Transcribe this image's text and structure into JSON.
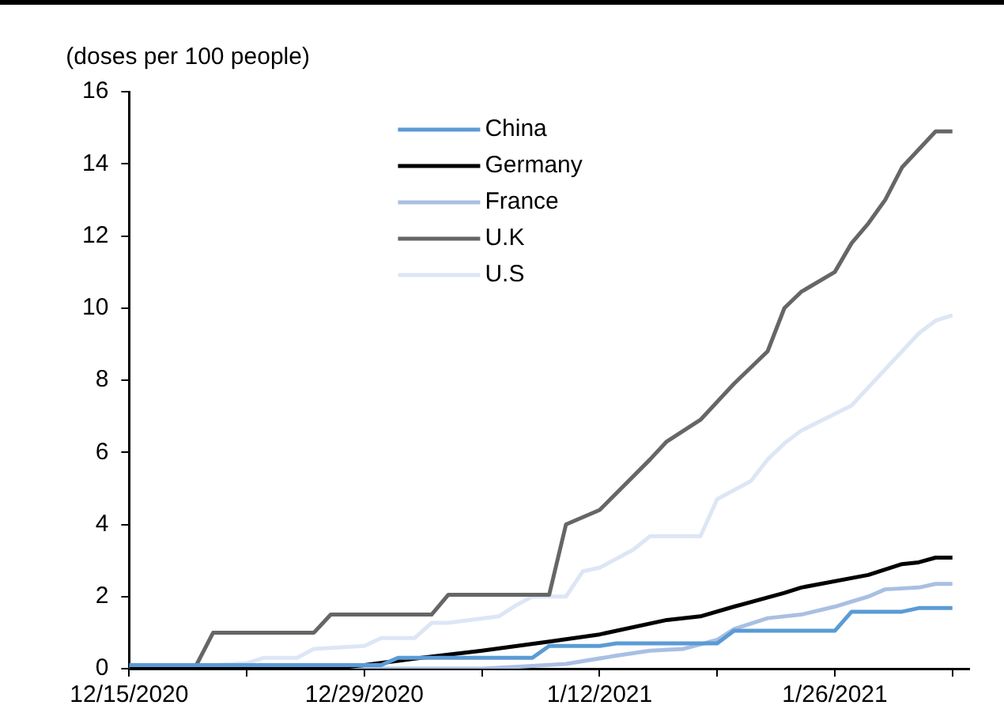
{
  "chart_data": {
    "type": "line",
    "ylabel": "(doses per 100 people)",
    "xlim": [
      "2020-12-15",
      "2021-02-03"
    ],
    "xticks": [
      {
        "value": "2020-12-15",
        "label": "12/15/2020"
      },
      {
        "value": "2020-12-22",
        "label": null
      },
      {
        "value": "2020-12-29",
        "label": "12/29/2020"
      },
      {
        "value": "2021-01-05",
        "label": null
      },
      {
        "value": "2021-01-12",
        "label": "1/12/2021"
      },
      {
        "value": "2021-01-19",
        "label": null
      },
      {
        "value": "2021-01-26",
        "label": "1/26/2021"
      },
      {
        "value": "2021-02-02",
        "label": null
      }
    ],
    "ylim": [
      0,
      16
    ],
    "yticks": [
      0,
      2,
      4,
      6,
      8,
      10,
      12,
      14,
      16
    ],
    "legend": "top",
    "line_style": "solid",
    "marker": "none",
    "series": [
      {
        "name": "China",
        "color": "#5b9bd5",
        "x": [
          "2020-12-15",
          "2020-12-30",
          "2020-12-31",
          "2021-01-08",
          "2021-01-09",
          "2021-01-12",
          "2021-01-13",
          "2021-01-19",
          "2021-01-20",
          "2021-01-26",
          "2021-01-27",
          "2021-01-30",
          "2021-01-31",
          "2021-02-02"
        ],
        "values": [
          0.1,
          0.1,
          0.3,
          0.3,
          0.63,
          0.63,
          0.7,
          0.7,
          1.05,
          1.05,
          1.58,
          1.58,
          1.68,
          1.68
        ]
      },
      {
        "name": "Germany",
        "color": "#000000",
        "x": [
          "2020-12-15",
          "2020-12-27",
          "2020-12-29",
          "2021-01-01",
          "2021-01-05",
          "2021-01-09",
          "2021-01-12",
          "2021-01-16",
          "2021-01-18",
          "2021-01-20",
          "2021-01-23",
          "2021-01-24",
          "2021-01-28",
          "2021-01-30",
          "2021-01-31",
          "2021-02-01",
          "2021-02-02"
        ],
        "values": [
          0,
          0,
          0.1,
          0.28,
          0.5,
          0.75,
          0.95,
          1.35,
          1.45,
          1.72,
          2.1,
          2.25,
          2.6,
          2.9,
          2.95,
          3.08,
          3.08
        ]
      },
      {
        "name": "France",
        "color": "#a9bfe3",
        "x": [
          "2020-12-15",
          "2021-01-05",
          "2021-01-07",
          "2021-01-10",
          "2021-01-13",
          "2021-01-15",
          "2021-01-17",
          "2021-01-19",
          "2021-01-20",
          "2021-01-22",
          "2021-01-24",
          "2021-01-26",
          "2021-01-28",
          "2021-01-29",
          "2021-01-31",
          "2021-02-01",
          "2021-02-02"
        ],
        "values": [
          0,
          0,
          0.05,
          0.13,
          0.36,
          0.5,
          0.55,
          0.8,
          1.1,
          1.4,
          1.5,
          1.72,
          2.0,
          2.2,
          2.25,
          2.35,
          2.35
        ]
      },
      {
        "name": "U.K",
        "color": "#666666",
        "x": [
          "2020-12-15",
          "2020-12-19",
          "2020-12-20",
          "2020-12-26",
          "2020-12-27",
          "2021-01-02",
          "2021-01-03",
          "2021-01-09",
          "2021-01-10",
          "2021-01-12",
          "2021-01-15",
          "2021-01-16",
          "2021-01-18",
          "2021-01-20",
          "2021-01-22",
          "2021-01-23",
          "2021-01-24",
          "2021-01-26",
          "2021-01-27",
          "2021-01-28",
          "2021-01-29",
          "2021-01-30",
          "2021-02-01",
          "2021-02-02"
        ],
        "values": [
          0.1,
          0.1,
          1.0,
          1.0,
          1.5,
          1.5,
          2.05,
          2.05,
          4.0,
          4.4,
          5.8,
          6.3,
          6.9,
          7.9,
          8.8,
          10.0,
          10.45,
          11.0,
          11.8,
          12.35,
          13.0,
          13.9,
          14.9,
          14.9
        ]
      },
      {
        "name": "U.S",
        "color": "#dde6f5",
        "x": [
          "2020-12-15",
          "2020-12-19",
          "2020-12-20",
          "2020-12-22",
          "2020-12-23",
          "2020-12-25",
          "2020-12-26",
          "2020-12-29",
          "2020-12-30",
          "2021-01-01",
          "2021-01-02",
          "2021-01-03",
          "2021-01-06",
          "2021-01-07",
          "2021-01-08",
          "2021-01-10",
          "2021-01-11",
          "2021-01-12",
          "2021-01-14",
          "2021-01-15",
          "2021-01-18",
          "2021-01-19",
          "2021-01-21",
          "2021-01-22",
          "2021-01-23",
          "2021-01-24",
          "2021-01-27",
          "2021-01-29",
          "2021-01-31",
          "2021-02-01",
          "2021-02-02"
        ],
        "values": [
          0,
          0,
          0.1,
          0.15,
          0.3,
          0.3,
          0.55,
          0.63,
          0.85,
          0.85,
          1.27,
          1.27,
          1.45,
          1.75,
          2.0,
          2.0,
          2.7,
          2.8,
          3.3,
          3.67,
          3.67,
          4.7,
          5.2,
          5.8,
          6.25,
          6.6,
          7.3,
          8.3,
          9.3,
          9.65,
          9.8
        ]
      }
    ]
  }
}
